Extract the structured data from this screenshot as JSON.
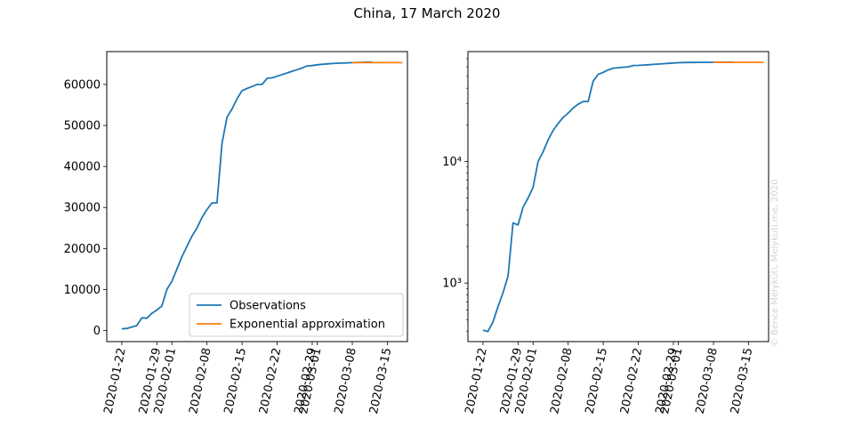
{
  "figure": {
    "title": "China, 17 March 2020",
    "watermark": "© Bence Mélykúti, Melykuti.me, 2020"
  },
  "colors": {
    "observations": "#1f77b4",
    "approximation": "#ff7f0e"
  },
  "chart_data": [
    {
      "type": "line",
      "scale": "linear",
      "ylim": [
        -2700,
        68000
      ],
      "yticks": [
        0,
        10000,
        20000,
        30000,
        40000,
        50000,
        60000
      ],
      "ytick_labels": [
        "0",
        "10000",
        "20000",
        "30000",
        "40000",
        "50000",
        "60000"
      ],
      "xlim": [
        "2020-01-19",
        "2020-03-19"
      ],
      "xticks": [
        "2020-01-22",
        "2020-01-29",
        "2020-02-01",
        "2020-02-08",
        "2020-02-15",
        "2020-02-22",
        "2020-02-29",
        "2020-03-01",
        "2020-03-08",
        "2020-03-15"
      ],
      "xtick_labels": [
        "2020-01-22",
        "2020-01-29",
        "2020-02-01",
        "2020-02-08",
        "2020-02-15",
        "2020-02-22",
        "2020-02-29",
        "2020-03-01",
        "2020-03-08",
        "2020-03-15"
      ],
      "legend": {
        "position": "bottom-right",
        "entries": [
          "Observations",
          "Exponential approximation"
        ]
      },
      "series": [
        {
          "name": "Observations",
          "x": [
            "2020-01-22",
            "2020-01-23",
            "2020-01-24",
            "2020-01-25",
            "2020-01-26",
            "2020-01-27",
            "2020-01-28",
            "2020-01-29",
            "2020-01-30",
            "2020-01-31",
            "2020-02-01",
            "2020-02-02",
            "2020-02-03",
            "2020-02-04",
            "2020-02-05",
            "2020-02-06",
            "2020-02-07",
            "2020-02-08",
            "2020-02-09",
            "2020-02-10",
            "2020-02-11",
            "2020-02-12",
            "2020-02-13",
            "2020-02-14",
            "2020-02-15",
            "2020-02-16",
            "2020-02-17",
            "2020-02-18",
            "2020-02-19",
            "2020-02-20",
            "2020-02-21",
            "2020-02-22",
            "2020-02-23",
            "2020-02-24",
            "2020-02-25",
            "2020-02-26",
            "2020-02-27",
            "2020-02-28",
            "2020-02-29",
            "2020-03-01",
            "2020-03-02",
            "2020-03-03",
            "2020-03-04",
            "2020-03-05",
            "2020-03-06",
            "2020-03-07",
            "2020-03-08",
            "2020-03-09",
            "2020-03-10",
            "2020-03-11",
            "2020-03-12"
          ],
          "y": [
            400,
            500,
            850,
            1200,
            3100,
            3000,
            4200,
            5000,
            6000,
            10000,
            12000,
            15000,
            18000,
            20500,
            23000,
            25000,
            27500,
            29500,
            31100,
            31100,
            45700,
            52000,
            54000,
            56500,
            58500,
            59000,
            59500,
            60000,
            60000,
            61500,
            61600,
            62000,
            62400,
            62800,
            63200,
            63600,
            64000,
            64500,
            64600,
            64800,
            64900,
            65000,
            65100,
            65150,
            65200,
            65250,
            65300,
            65350,
            65400,
            65450,
            65450
          ]
        },
        {
          "name": "Exponential approximation",
          "x": [
            "2020-03-08",
            "2020-03-18"
          ],
          "y": [
            65300,
            65300
          ]
        }
      ]
    },
    {
      "type": "line",
      "scale": "log",
      "ylim": [
        330,
        80000
      ],
      "yticks": [
        1000,
        10000
      ],
      "ytick_labels": [
        "10³",
        "10⁴"
      ],
      "xlim": [
        "2020-01-19",
        "2020-03-19"
      ],
      "xticks": [
        "2020-01-22",
        "2020-01-29",
        "2020-02-01",
        "2020-02-08",
        "2020-02-15",
        "2020-02-22",
        "2020-02-29",
        "2020-03-01",
        "2020-03-08",
        "2020-03-15"
      ],
      "xtick_labels": [
        "2020-01-22",
        "2020-01-29",
        "2020-02-01",
        "2020-02-08",
        "2020-02-15",
        "2020-02-22",
        "2020-02-29",
        "2020-03-01",
        "2020-03-08",
        "2020-03-15"
      ],
      "series": [
        {
          "name": "Observations",
          "x": [
            "2020-01-22",
            "2020-01-23",
            "2020-01-24",
            "2020-01-25",
            "2020-01-26",
            "2020-01-27",
            "2020-01-28",
            "2020-01-29",
            "2020-01-30",
            "2020-01-31",
            "2020-02-01",
            "2020-02-02",
            "2020-02-03",
            "2020-02-04",
            "2020-02-05",
            "2020-02-06",
            "2020-02-07",
            "2020-02-08",
            "2020-02-09",
            "2020-02-10",
            "2020-02-11",
            "2020-02-12",
            "2020-02-13",
            "2020-02-14",
            "2020-02-15",
            "2020-02-16",
            "2020-02-17",
            "2020-02-18",
            "2020-02-19",
            "2020-02-20",
            "2020-02-21",
            "2020-02-22",
            "2020-02-23",
            "2020-02-24",
            "2020-02-25",
            "2020-02-26",
            "2020-02-27",
            "2020-02-28",
            "2020-02-29",
            "2020-03-01",
            "2020-03-02",
            "2020-03-03",
            "2020-03-04",
            "2020-03-05",
            "2020-03-06",
            "2020-03-07",
            "2020-03-08",
            "2020-03-09",
            "2020-03-10",
            "2020-03-11",
            "2020-03-12"
          ],
          "y": [
            410,
            400,
            480,
            640,
            830,
            1140,
            3120,
            3000,
            4200,
            5000,
            6100,
            10000,
            12000,
            15000,
            18000,
            20500,
            23000,
            25000,
            27500,
            29500,
            31100,
            31100,
            45700,
            52000,
            54000,
            56500,
            58500,
            59000,
            59500,
            60000,
            61500,
            61600,
            62000,
            62400,
            62800,
            63200,
            63600,
            64000,
            64500,
            64800,
            65000,
            65100,
            65150,
            65200,
            65250,
            65300,
            65350,
            65400,
            65420,
            65440,
            65450
          ]
        },
        {
          "name": "Exponential approximation",
          "x": [
            "2020-03-08",
            "2020-03-18"
          ],
          "y": [
            65300,
            65300
          ]
        }
      ]
    }
  ]
}
